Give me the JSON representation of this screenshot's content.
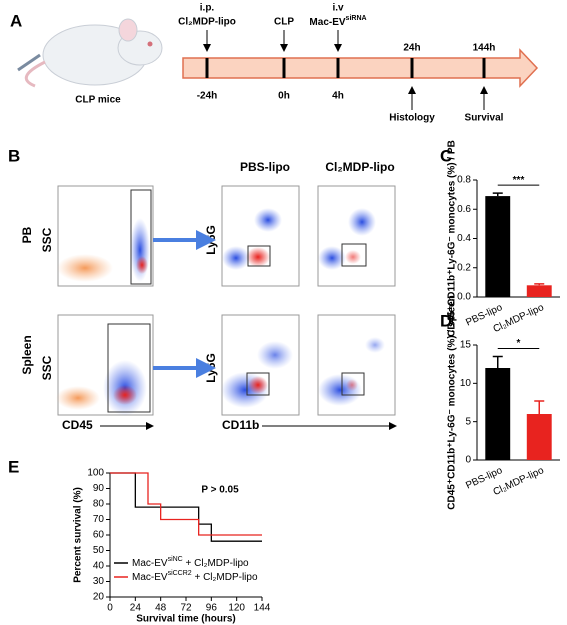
{
  "panel_a": {
    "label": "A",
    "mouse_label": "CLP mice",
    "events": [
      {
        "top1": "i.p.",
        "top2": "Cl₂MDP-lipo",
        "time": "-24h"
      },
      {
        "top2": "CLP",
        "time": "0h"
      },
      {
        "top1": "i.v",
        "top2": {
          "base": "Mac-EV",
          "sup": "siRNA"
        },
        "time": "4h"
      },
      {
        "time": "24h",
        "bottom": "Histology"
      },
      {
        "time": "144h",
        "bottom": "Survival"
      }
    ]
  },
  "panel_b": {
    "label": "B",
    "col_labels": [
      "PBS-lipo",
      "Cl₂MDP-lipo"
    ],
    "row_labels": [
      "PB",
      "Spleen"
    ],
    "ssc_label": "SSC",
    "ly6g_label": "Ly6G",
    "cd45_label": "CD45",
    "cd11b_label": "CD11b"
  },
  "chart_data": [
    {
      "type": "bar",
      "panel": "C",
      "ylabel": "CD45⁺CD11b⁺Ly-6G⁻ monocytes (%) / PB",
      "categories": [
        "PBS-lipo",
        "Cl₂MDP-lipo"
      ],
      "values": [
        0.69,
        0.08
      ],
      "errors": [
        0.02,
        0.01
      ],
      "colors": [
        "#000000",
        "#e8231f"
      ],
      "significance": "***",
      "ylim": [
        0,
        0.8
      ],
      "yticks": [
        {
          "value": 0,
          "label": "0.0"
        },
        0.2,
        0.4,
        0.6,
        0.8
      ]
    },
    {
      "type": "bar",
      "panel": "D",
      "ylabel": "CD45⁺CD11b⁺Ly-6G⁻ monocytes (%) / spleen",
      "categories": [
        "PBS-lipo",
        "Cl₂MDP-lipo"
      ],
      "values": [
        12,
        6
      ],
      "errors": [
        1.5,
        1.7
      ],
      "colors": [
        "#000000",
        "#e8231f"
      ],
      "significance": "*",
      "ylim": [
        0,
        15
      ],
      "yticks": [
        0,
        5,
        10,
        15
      ]
    },
    {
      "type": "step",
      "panel": "E",
      "annotation": "P > 0.05",
      "xlabel": "Survival time (hours)",
      "ylabel": "Percent survival (%)",
      "series": [
        {
          "name": {
            "base": "Mac-EV",
            "sup": "siNC",
            "rest": " + Cl₂MDP-lipo"
          },
          "color": "#000000",
          "x": [
            0,
            24,
            84,
            96,
            144
          ],
          "values": [
            100,
            78,
            67,
            56,
            56
          ]
        },
        {
          "name": {
            "base": "Mac-EV",
            "sup": "siCCR2",
            "rest": " + Cl₂MDP-lipo"
          },
          "color": "#e8231f",
          "x": [
            0,
            36,
            48,
            84,
            144
          ],
          "values": [
            100,
            80,
            70,
            60,
            60
          ]
        }
      ],
      "xlim": [
        0,
        144
      ],
      "xticks": [
        0,
        24,
        48,
        72,
        96,
        120,
        144
      ],
      "ylim": [
        20,
        100
      ],
      "yticks": [
        20,
        30,
        40,
        50,
        60,
        70,
        80,
        90,
        100
      ]
    }
  ]
}
